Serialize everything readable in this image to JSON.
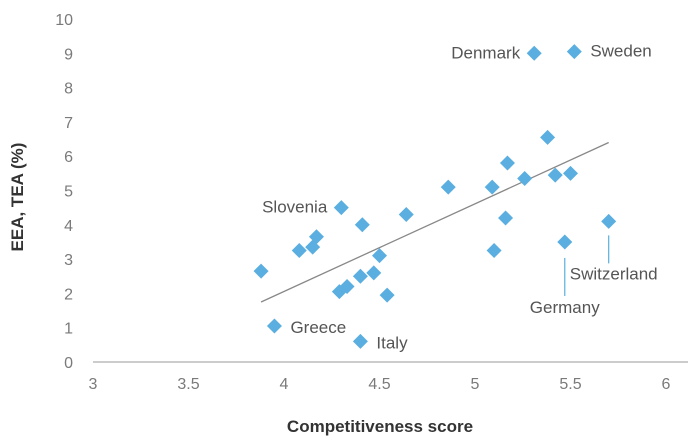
{
  "chart_data": {
    "type": "scatter",
    "title": "",
    "xlabel": "Competitiveness score",
    "ylabel": "EEA, TEA (%)",
    "xlim": [
      3,
      6
    ],
    "ylim": [
      0,
      10
    ],
    "x_ticks": [
      "3",
      "3.5",
      "4",
      "4.5",
      "5",
      "5.5",
      "6"
    ],
    "y_ticks": [
      "0",
      "1",
      "2",
      "3",
      "4",
      "5",
      "6",
      "7",
      "8",
      "9",
      "10"
    ],
    "grid": false,
    "legend": "none",
    "colors": {
      "marker": "#5aaee0",
      "trendline": "#888888",
      "axis": "#999999",
      "leader": "#5aaee0"
    },
    "series": [
      {
        "points": [
          {
            "x": 3.88,
            "y": 2.65
          },
          {
            "x": 3.95,
            "y": 1.05,
            "label": "Greece"
          },
          {
            "x": 4.08,
            "y": 3.25
          },
          {
            "x": 4.15,
            "y": 3.35
          },
          {
            "x": 4.17,
            "y": 3.65
          },
          {
            "x": 4.29,
            "y": 2.05
          },
          {
            "x": 4.3,
            "y": 4.5,
            "label": "Slovenia"
          },
          {
            "x": 4.33,
            "y": 2.2
          },
          {
            "x": 4.4,
            "y": 2.5
          },
          {
            "x": 4.4,
            "y": 0.6,
            "label": "Italy"
          },
          {
            "x": 4.41,
            "y": 4.0
          },
          {
            "x": 4.47,
            "y": 2.6
          },
          {
            "x": 4.5,
            "y": 3.1
          },
          {
            "x": 4.54,
            "y": 1.95
          },
          {
            "x": 4.64,
            "y": 4.3
          },
          {
            "x": 4.86,
            "y": 5.1
          },
          {
            "x": 5.09,
            "y": 5.1
          },
          {
            "x": 5.1,
            "y": 3.25
          },
          {
            "x": 5.16,
            "y": 4.2
          },
          {
            "x": 5.17,
            "y": 5.8
          },
          {
            "x": 5.26,
            "y": 5.35
          },
          {
            "x": 5.31,
            "y": 9.0,
            "label": "Denmark"
          },
          {
            "x": 5.38,
            "y": 6.55
          },
          {
            "x": 5.42,
            "y": 5.45
          },
          {
            "x": 5.47,
            "y": 3.5,
            "label": "Germany"
          },
          {
            "x": 5.5,
            "y": 5.5
          },
          {
            "x": 5.52,
            "y": 9.05,
            "label": "Sweden"
          },
          {
            "x": 5.7,
            "y": 4.1,
            "label": "Switzerland"
          }
        ]
      }
    ],
    "trendline": {
      "x": [
        3.88,
        5.7
      ],
      "y": [
        1.75,
        6.4
      ]
    }
  }
}
